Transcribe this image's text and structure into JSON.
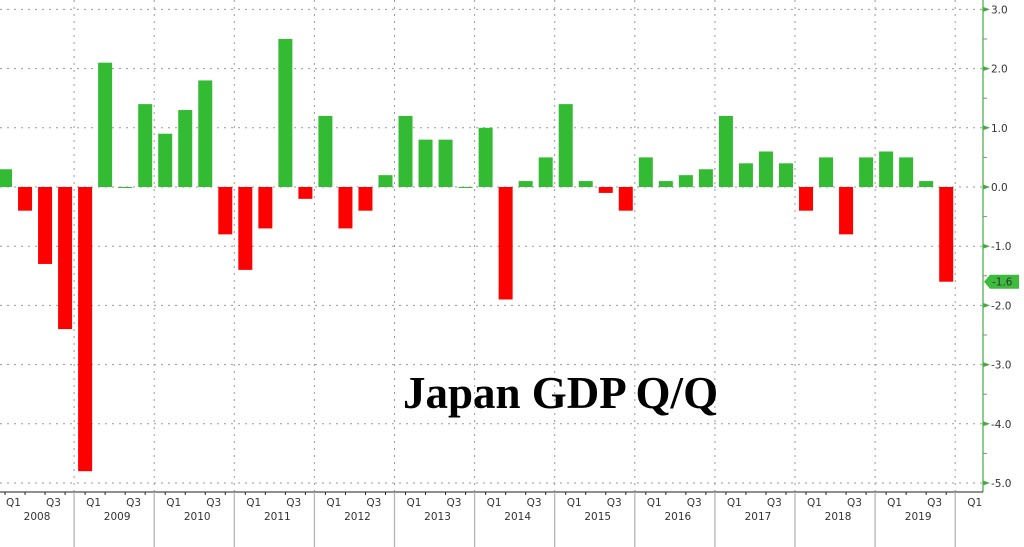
{
  "chart_data": {
    "type": "bar",
    "title": "Japan GDP Q/Q",
    "xlabel": "",
    "ylabel": "",
    "ylim": [
      -5.0,
      3.0
    ],
    "yticks": [
      "3.0",
      "2.0",
      "1.0",
      "0.0",
      "-1.0",
      "-2.0",
      "-3.0",
      "-4.0",
      "-5.0"
    ],
    "ytick_values": [
      3,
      2,
      1,
      0,
      -1,
      -2,
      -3,
      -4,
      -5
    ],
    "grid": true,
    "legend": null,
    "positive_color": "#33bb33",
    "negative_color": "#ff0000",
    "axis_color": "#44aa44",
    "last_value_label": "-1.6",
    "years": [
      "2008",
      "2009",
      "2010",
      "2011",
      "2012",
      "2013",
      "2014",
      "2015",
      "2016",
      "2017",
      "2018",
      "2019"
    ],
    "quarter_tick_labels": [
      "Q1",
      "Q3"
    ],
    "trailing_tick_label": "Q1",
    "categories": [
      "2008 Q1",
      "2008 Q2",
      "2008 Q3",
      "2008 Q4",
      "2009 Q1",
      "2009 Q2",
      "2009 Q3",
      "2009 Q4",
      "2010 Q1",
      "2010 Q2",
      "2010 Q3",
      "2010 Q4",
      "2011 Q1",
      "2011 Q2",
      "2011 Q3",
      "2011 Q4",
      "2012 Q1",
      "2012 Q2",
      "2012 Q3",
      "2012 Q4",
      "2013 Q1",
      "2013 Q2",
      "2013 Q3",
      "2013 Q4",
      "2014 Q1",
      "2014 Q2",
      "2014 Q3",
      "2014 Q4",
      "2015 Q1",
      "2015 Q2",
      "2015 Q3",
      "2015 Q4",
      "2016 Q1",
      "2016 Q2",
      "2016 Q3",
      "2016 Q4",
      "2017 Q1",
      "2017 Q2",
      "2017 Q3",
      "2017 Q4",
      "2018 Q1",
      "2018 Q2",
      "2018 Q3",
      "2018 Q4",
      "2019 Q1",
      "2019 Q2",
      "2019 Q3",
      "2019 Q4"
    ],
    "values": [
      0.3,
      -0.4,
      -1.3,
      -2.4,
      -4.8,
      2.1,
      0.0,
      1.4,
      0.9,
      1.3,
      1.8,
      -0.8,
      -1.4,
      -0.7,
      2.5,
      -0.2,
      1.2,
      -0.7,
      -0.4,
      0.2,
      1.2,
      0.8,
      0.8,
      0.0,
      1.0,
      -1.9,
      0.1,
      0.5,
      1.4,
      0.1,
      -0.1,
      -0.4,
      0.5,
      0.1,
      0.2,
      0.3,
      1.2,
      0.4,
      0.6,
      0.4,
      -0.4,
      0.5,
      -0.8,
      0.5,
      0.6,
      0.5,
      0.1,
      -1.6
    ]
  }
}
